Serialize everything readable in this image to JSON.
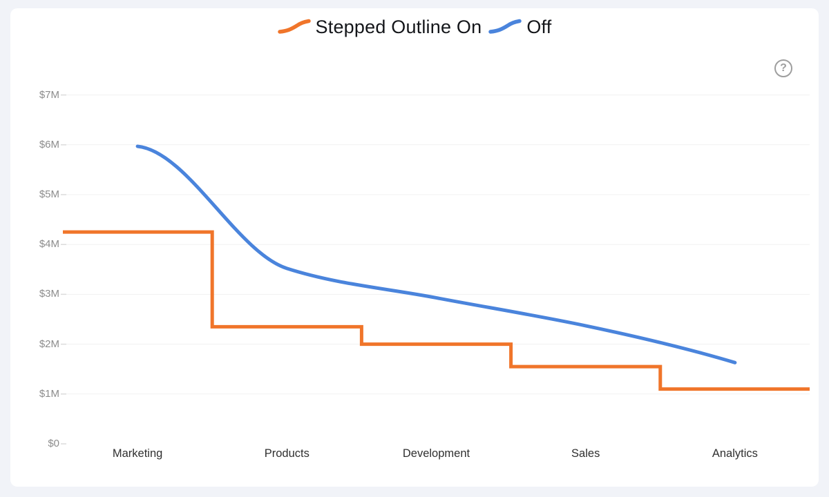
{
  "page": {
    "background_color": "#F1F3F8",
    "card_color": "#FFFFFF"
  },
  "legend": {
    "items": [
      {
        "label": "Stepped Outline On",
        "color": "#F0752A"
      },
      {
        "label": "Off",
        "color": "#4A84DC"
      }
    ]
  },
  "help": {
    "glyph": "?",
    "color": "#9E9E9E"
  },
  "chart_data": {
    "type": "line",
    "categories": [
      "Marketing",
      "Products",
      "Development",
      "Sales",
      "Analytics"
    ],
    "series": [
      {
        "name": "Stepped Outline On",
        "style": "stepped",
        "color": "#F0752A",
        "values": [
          4.25,
          2.35,
          2.0,
          1.55,
          1.1
        ]
      },
      {
        "name": "Off",
        "style": "smooth",
        "color": "#4A84DC",
        "values": [
          5.97,
          3.52,
          2.93,
          2.37,
          1.63
        ]
      }
    ],
    "y_ticks": [
      {
        "value": 0,
        "label": "$0"
      },
      {
        "value": 1,
        "label": "$1M"
      },
      {
        "value": 2,
        "label": "$2M"
      },
      {
        "value": 3,
        "label": "$3M"
      },
      {
        "value": 4,
        "label": "$4M"
      },
      {
        "value": 5,
        "label": "$5M"
      },
      {
        "value": 6,
        "label": "$6M"
      },
      {
        "value": 7,
        "label": "$7M"
      }
    ],
    "ylim": [
      0,
      7.5
    ],
    "grid": "horizontal",
    "legend_position": "top",
    "axis_colors": {
      "gridline": "#F1F1F1",
      "tick": "#DBDBDB",
      "y_label": "#8C8C8C",
      "x_label": "#2F2F2F"
    }
  }
}
